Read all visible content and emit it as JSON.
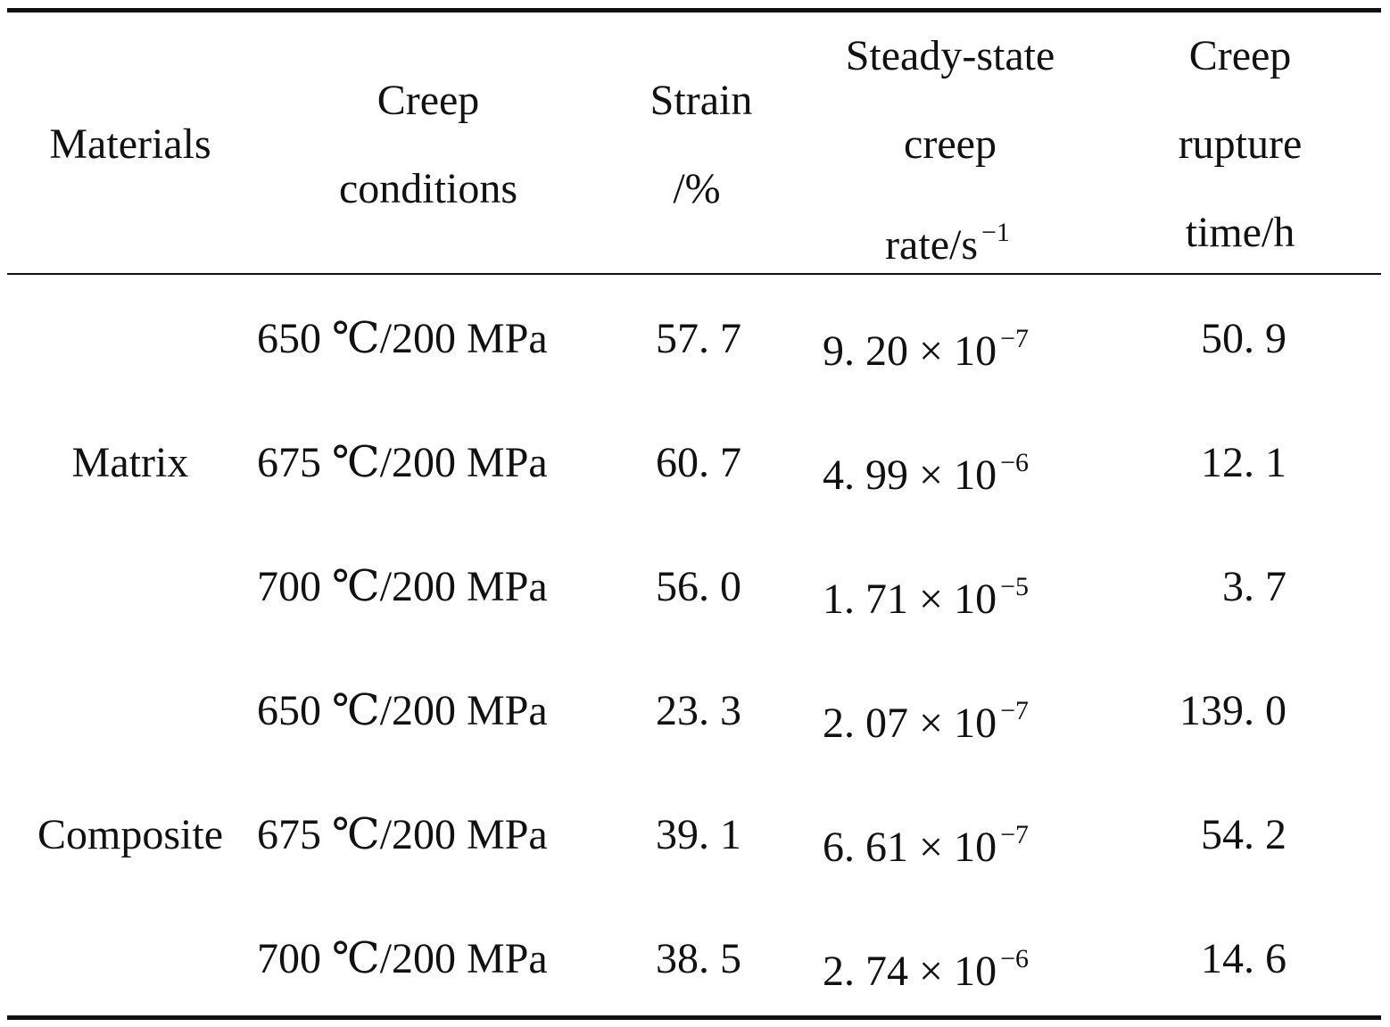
{
  "header": {
    "materials": "Materials",
    "creep_conditions": [
      "Creep",
      "conditions"
    ],
    "strain": [
      "Strain",
      "/%"
    ],
    "steady_state": [
      "Steady-state",
      "creep",
      "rate/s"
    ],
    "steady_state_sup": "−1",
    "rupture": [
      "Creep",
      "rupture",
      "time/h"
    ]
  },
  "groups": [
    {
      "material": "Matrix"
    },
    {
      "material": "Composite"
    }
  ],
  "rows": [
    {
      "condition": "650 ℃/200 MPa",
      "strain": "57. 7",
      "rate_mant": "9. 20 × 10",
      "rate_exp": "−7",
      "rupture": "50. 9"
    },
    {
      "condition": "675 ℃/200 MPa",
      "strain": "60. 7",
      "rate_mant": "4. 99 × 10",
      "rate_exp": "−6",
      "rupture": "12. 1"
    },
    {
      "condition": "700 ℃/200 MPa",
      "strain": "56. 0",
      "rate_mant": "1. 71 × 10",
      "rate_exp": "−5",
      "rupture": "3. 7"
    },
    {
      "condition": "650 ℃/200 MPa",
      "strain": "23. 3",
      "rate_mant": "2. 07 × 10",
      "rate_exp": "−7",
      "rupture": "139. 0"
    },
    {
      "condition": "675 ℃/200 MPa",
      "strain": "39. 1",
      "rate_mant": "6. 61 × 10",
      "rate_exp": "−7",
      "rupture": "54. 2"
    },
    {
      "condition": "700 ℃/200 MPa",
      "strain": "38. 5",
      "rate_mant": "2. 74 × 10",
      "rate_exp": "−6",
      "rupture": "14. 6"
    }
  ]
}
